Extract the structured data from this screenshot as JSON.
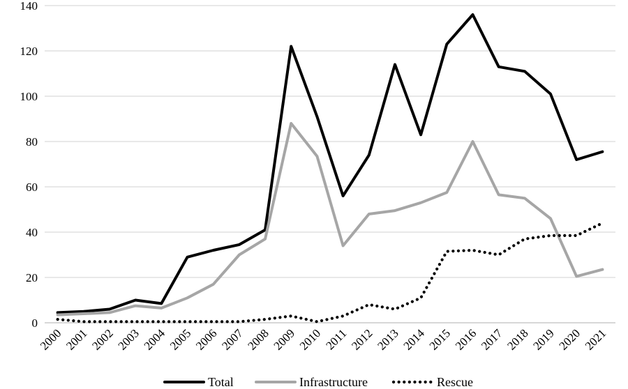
{
  "chart_data": {
    "type": "line",
    "title": "",
    "xlabel": "",
    "ylabel": "",
    "ylim": [
      0,
      140
    ],
    "yticks": [
      0,
      20,
      40,
      60,
      80,
      100,
      120,
      140
    ],
    "grid": "horizontal",
    "legend_position": "bottom",
    "categories": [
      "2000",
      "2001",
      "2002",
      "2003",
      "2004",
      "2005",
      "2006",
      "2007",
      "2008",
      "2009",
      "2010",
      "2011",
      "2012",
      "2013",
      "2014",
      "2015",
      "2016",
      "2017",
      "2018",
      "2019",
      "2020",
      "2021"
    ],
    "series": [
      {
        "name": "Total",
        "color": "#000000",
        "style": "solid",
        "values": [
          4.5,
          5,
          6,
          10,
          8.5,
          29,
          32,
          34.5,
          41,
          122,
          91,
          56,
          74,
          114,
          83,
          123,
          136,
          113,
          111,
          101,
          72,
          75.5
        ]
      },
      {
        "name": "Infrastructure",
        "color": "#a6a6a6",
        "style": "solid",
        "values": [
          3.5,
          4,
          4.5,
          7.5,
          6.5,
          11,
          17,
          30,
          37,
          88,
          73.5,
          34,
          48,
          49.5,
          53,
          57.5,
          80,
          56.5,
          55,
          46,
          20.5,
          23.5
        ]
      },
      {
        "name": "Rescue",
        "color": "#000000",
        "style": "dotted",
        "values": [
          1.5,
          0.5,
          0.5,
          0.5,
          0.5,
          0.5,
          0.5,
          0.5,
          1.5,
          3,
          0.5,
          3,
          8,
          6,
          11,
          31.5,
          32,
          30,
          37,
          38.5,
          38.5,
          44
        ]
      }
    ]
  }
}
